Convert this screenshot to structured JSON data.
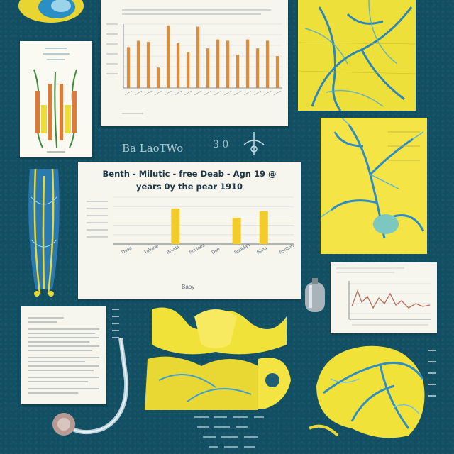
{
  "center_chart": {
    "title_line1": "Benth - Milutic - free Deab - Agn 19 @",
    "title_line2": "years 0y the pear 1910",
    "xlabel": "Baoy",
    "bar_color": "#f2cc2a",
    "tick_labels": [
      "Dsda",
      "Tubaoe",
      "Bnuda",
      "Snutdes",
      "Dun",
      "Suoidah",
      "Sbna",
      "Ssnbnh"
    ]
  },
  "top_chart": {
    "bar_color": "#e08a3c"
  },
  "chalk_labels": {
    "mid_left": "Ba LaoTWo",
    "right_of_chart": "3 0"
  },
  "colors": {
    "board": "#124f63",
    "anatomy_blue": "#3a9fd0",
    "anatomy_yellow": "#f1e33a"
  }
}
